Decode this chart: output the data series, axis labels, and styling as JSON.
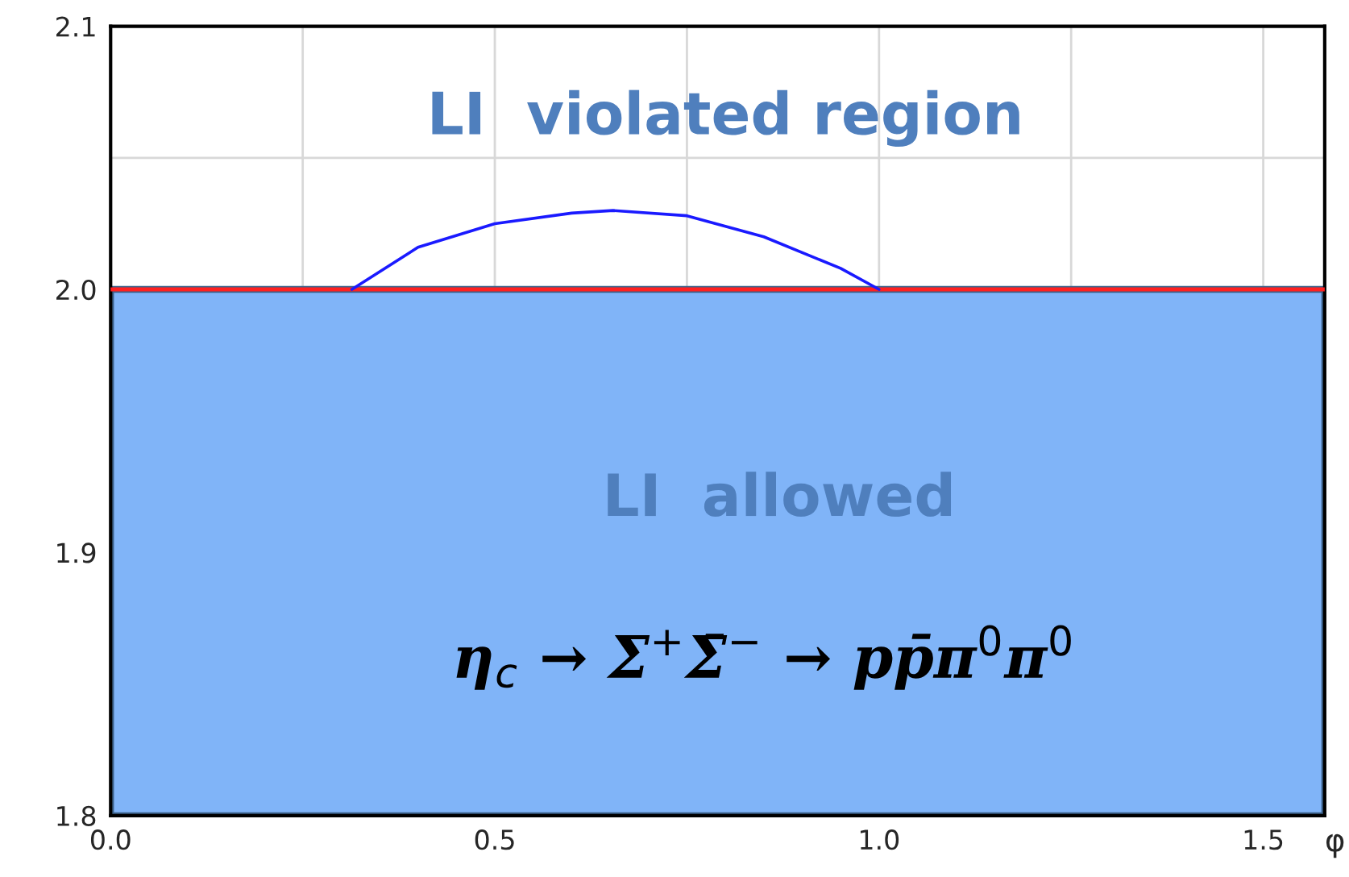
{
  "chart_data": {
    "type": "line",
    "xlabel": "φ",
    "series": [
      {
        "color": "#1a1aff",
        "x": [
          0.314,
          0.4,
          0.5,
          0.6,
          0.654,
          0.75,
          0.85,
          0.95,
          1.0
        ],
        "values": [
          2.0,
          2.016,
          2.025,
          2.029,
          2.03,
          2.028,
          2.02,
          2.008,
          2.0
        ]
      }
    ],
    "xlim": [
      0,
      1.58
    ],
    "ylim": [
      1.8,
      2.1
    ],
    "xticks": [
      {
        "value": 0,
        "label": "0.0"
      },
      {
        "value": 0.25,
        "label": null
      },
      {
        "value": 0.5,
        "label": "0.5"
      },
      {
        "value": 0.75,
        "label": null
      },
      {
        "value": 1,
        "label": "1.0"
      },
      {
        "value": 1.25,
        "label": null
      },
      {
        "value": 1.5,
        "label": "1.5"
      }
    ],
    "yticks": [
      1.8,
      1.9,
      {
        "value": 2.0,
        "label": "2.0"
      },
      {
        "value": 2.05,
        "label": null
      },
      2.1
    ],
    "grid": true,
    "marker": "none",
    "line_style": "solid",
    "ref_lines": [
      {
        "axis": "y",
        "value": 2.0,
        "color": "#ff2020"
      }
    ],
    "bands": [
      {
        "axis": "y",
        "from": 1.8,
        "to": 2.0,
        "label": "LI  allowed",
        "color": "#80b4f8"
      }
    ],
    "annotations": [
      "LI  violated region",
      "η$_{c}$ → Σ$^{+}$Σ̄$^{−}$ → pp̄π$^{0}$π$^{0}$"
    ]
  }
}
